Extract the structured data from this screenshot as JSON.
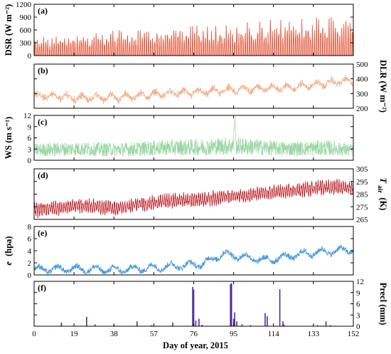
{
  "chart_data": {
    "type": "line",
    "xlabel": "Day of year, 2015",
    "xlim": [
      0,
      152
    ],
    "xticks": [
      "0",
      "19",
      "38",
      "57",
      "76",
      "95",
      "114",
      "133",
      "152"
    ],
    "xtick_values": [
      0,
      19,
      38,
      57,
      76,
      95,
      114,
      133,
      152
    ],
    "panels": [
      {
        "id": "a",
        "label": "(a)",
        "ylabel": "DSR (W m⁻²)",
        "yside": "left",
        "ylim": [
          0,
          1200
        ],
        "yticks": [
          0,
          300,
          600,
          900,
          1200
        ],
        "ytick_labels": [
          "0",
          "300",
          "600",
          "900",
          "1200"
        ],
        "color": "#e2563b",
        "summary_x": [
          0,
          20,
          40,
          60,
          80,
          100,
          120,
          140,
          152
        ],
        "summary_daily_max": [
          420,
          520,
          600,
          650,
          720,
          800,
          880,
          920,
          930
        ]
      },
      {
        "id": "b",
        "label": "(b)",
        "ylabel": "DLR (W m⁻²)",
        "yside": "right",
        "ylim": [
          200,
          500
        ],
        "yticks": [
          200,
          300,
          400,
          500
        ],
        "ytick_labels": [
          "200",
          "300",
          "400",
          "500"
        ],
        "color": "#f0b08a",
        "summary_x": [
          0,
          20,
          40,
          60,
          80,
          100,
          120,
          140,
          152
        ],
        "summary_y": [
          290,
          270,
          275,
          300,
          310,
          330,
          340,
          370,
          390
        ]
      },
      {
        "id": "c",
        "label": "(c)",
        "ylabel": "WS (m s⁻¹)",
        "yside": "left",
        "ylim": [
          0,
          12
        ],
        "yticks": [
          0,
          3,
          6,
          9,
          12
        ],
        "ytick_labels": [
          "0",
          "3",
          "6",
          "9",
          "12"
        ],
        "color": "#9cd6a6",
        "summary_x": [
          0,
          20,
          40,
          60,
          80,
          95,
          120,
          140,
          152
        ],
        "summary_y": [
          2.5,
          2.8,
          2.6,
          3.0,
          3.2,
          3.5,
          2.8,
          3.0,
          2.4
        ]
      },
      {
        "id": "d",
        "label": "(d)",
        "ylabel_main": "T",
        "ylabel_sub": "air",
        "ylabel_unit": "(K)",
        "yside": "right",
        "ylim": [
          265,
          305
        ],
        "yticks": [
          265,
          275,
          285,
          295,
          305
        ],
        "ytick_labels": [
          "265",
          "275",
          "285",
          "295",
          "305"
        ],
        "color": "#b5121b",
        "summary_x": [
          0,
          20,
          40,
          60,
          80,
          100,
          120,
          140,
          152
        ],
        "summary_y": [
          272,
          276,
          274,
          279,
          281,
          284,
          287,
          291,
          290
        ]
      },
      {
        "id": "e",
        "label": "(e)",
        "ylabel_main": "e",
        "ylabel_unit": "(hpa)",
        "yside": "left",
        "ylim": [
          0,
          8
        ],
        "yticks": [
          0,
          2,
          4,
          6,
          8
        ],
        "ytick_labels": [
          "0",
          "2",
          "4",
          "6",
          "8"
        ],
        "color": "#4a98d4",
        "summary_x": [
          0,
          20,
          40,
          60,
          80,
          90,
          110,
          130,
          152
        ],
        "summary_y": [
          0.9,
          1.0,
          0.8,
          1.3,
          1.8,
          3.5,
          2.4,
          3.6,
          4.2
        ]
      },
      {
        "id": "f",
        "label": "(f)",
        "ylabel": "Precl (mm)",
        "yside": "right",
        "ylim": [
          0,
          12
        ],
        "yticks": [
          0,
          3,
          6,
          9,
          12
        ],
        "ytick_labels": [
          "0",
          "3",
          "6",
          "9",
          "12"
        ],
        "color": "#4b2c9e",
        "bars_x": [
          13,
          25,
          29,
          38,
          49,
          56,
          66,
          75.5,
          76,
          77,
          78.5,
          80,
          93.5,
          94,
          95,
          95.5,
          96.5,
          99,
          103,
          110,
          111,
          117,
          118.5,
          119,
          135,
          139,
          141
        ],
        "bars_y": [
          1.0,
          2.5,
          0.5,
          0.3,
          1.3,
          0.3,
          1.0,
          10.5,
          9.8,
          1.5,
          2.0,
          0.4,
          11.3,
          11.5,
          2.0,
          3.7,
          1.3,
          0.5,
          0.3,
          3.5,
          2.7,
          9.9,
          1.3,
          0.4,
          0.3,
          1.3,
          0.3
        ]
      }
    ]
  }
}
